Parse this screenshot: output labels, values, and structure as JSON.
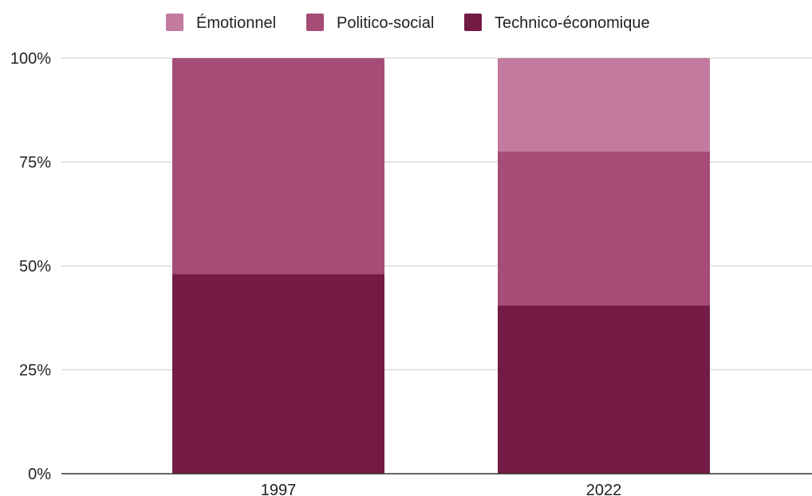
{
  "chart_data": {
    "type": "bar",
    "stacked": true,
    "normalized": true,
    "title": "",
    "xlabel": "",
    "ylabel": "",
    "categories": [
      "1997",
      "2022"
    ],
    "series": [
      {
        "name": "Technico-économique",
        "values": [
          48,
          40.5
        ],
        "color": "#731b45"
      },
      {
        "name": "Politico-social",
        "values": [
          52,
          37
        ],
        "color": "#a54d76"
      },
      {
        "name": "Émotionnel",
        "values": [
          0,
          22.5
        ],
        "color": "#c27a9f"
      }
    ],
    "ylim": [
      0,
      100
    ],
    "yticks": [
      "0%",
      "25%",
      "50%",
      "75%",
      "100%"
    ],
    "grid": true,
    "legend_position": "top-center",
    "legend_order": [
      "Émotionnel",
      "Politico-social",
      "Technico-économique"
    ]
  }
}
